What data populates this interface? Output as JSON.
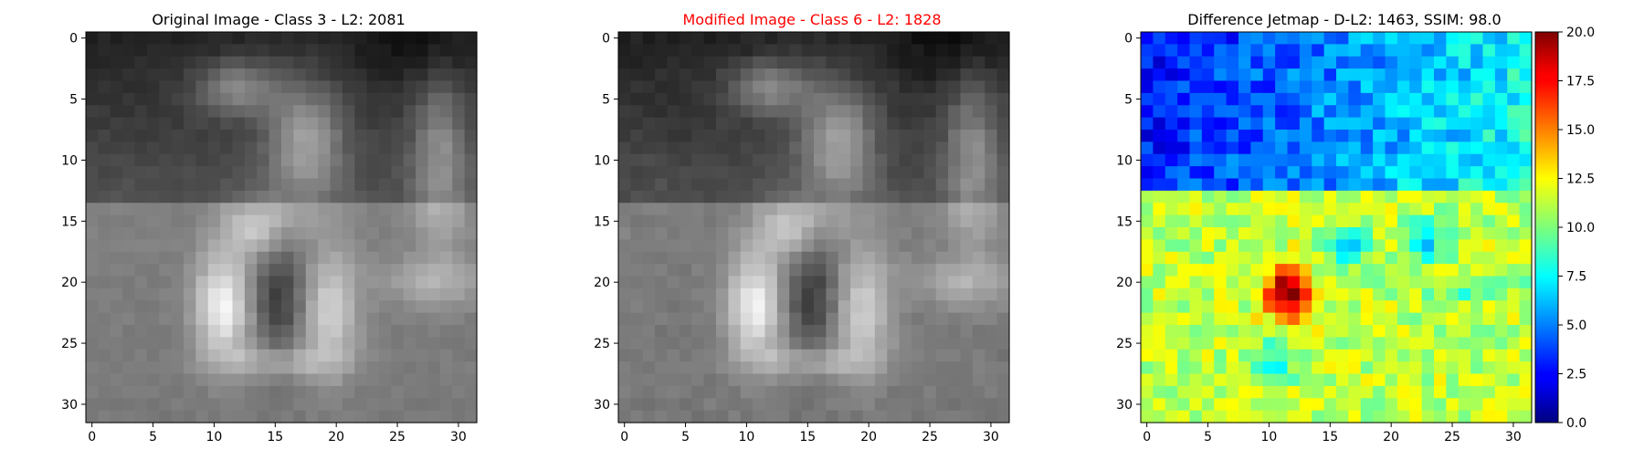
{
  "chart_data": [
    {
      "type": "heatmap",
      "title": "Original Image - Class 3 - L2: 2081",
      "title_color": "#000000",
      "colormap": "gray",
      "xlim": [
        -0.5,
        31.5
      ],
      "ylim": [
        31.5,
        -0.5
      ],
      "xticks": [
        0,
        5,
        10,
        15,
        20,
        25,
        30
      ],
      "yticks": [
        0,
        5,
        10,
        15,
        20,
        25,
        30
      ],
      "grid_size": [
        32,
        32
      ]
    },
    {
      "type": "heatmap",
      "title": "Modified Image - Class 6 - L2: 1828",
      "title_color": "#ff0000",
      "colormap": "gray",
      "xlim": [
        -0.5,
        31.5
      ],
      "ylim": [
        31.5,
        -0.5
      ],
      "xticks": [
        0,
        5,
        10,
        15,
        20,
        25,
        30
      ],
      "yticks": [
        0,
        5,
        10,
        15,
        20,
        25,
        30
      ],
      "grid_size": [
        32,
        32
      ]
    },
    {
      "type": "heatmap",
      "title": "Difference Jetmap - D-L2: 1463, SSIM: 98.0",
      "title_color": "#000000",
      "colormap": "jet",
      "xlim": [
        -0.5,
        31.5
      ],
      "ylim": [
        31.5,
        -0.5
      ],
      "xticks": [
        0,
        5,
        10,
        15,
        20,
        25,
        30
      ],
      "yticks": [
        0,
        5,
        10,
        15,
        20,
        25,
        30
      ],
      "grid_size": [
        32,
        32
      ],
      "colorbar": {
        "range": [
          0,
          20
        ],
        "ticks": [
          "0.0",
          "2.5",
          "5.0",
          "7.5",
          "10.0",
          "12.5",
          "15.0",
          "17.5",
          "20.0"
        ]
      }
    }
  ]
}
